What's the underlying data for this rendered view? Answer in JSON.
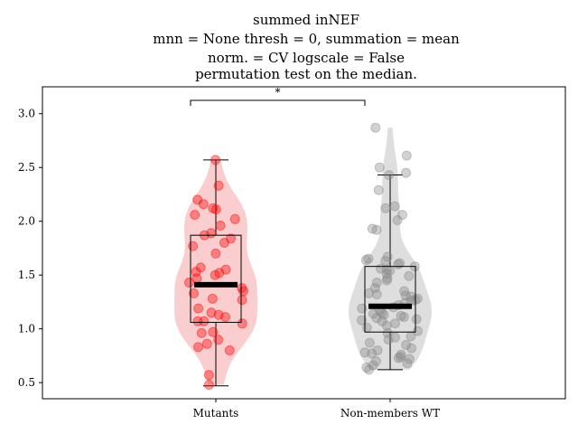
{
  "chart_data": {
    "type": "violin",
    "title_lines": [
      "summed inNEF",
      "mnn = None thresh = 0, summation = mean",
      "norm. = CV logscale = False",
      "permutation test on the median."
    ],
    "categories": [
      "Mutants",
      "Non-members WT"
    ],
    "ylim": [
      0.35,
      3.25
    ],
    "yticks": [
      0.5,
      1.0,
      1.5,
      2.0,
      2.5,
      3.0
    ],
    "ytick_labels": [
      "0.5",
      "1.0",
      "1.5",
      "2.0",
      "2.5",
      "3.0"
    ],
    "grid": false,
    "legend": "none",
    "significance": {
      "between": [
        "Mutants",
        "Non-members WT"
      ],
      "label": "*"
    },
    "series": [
      {
        "category": "Mutants",
        "color": "#ff0000",
        "violin_color": "#f8b4b4",
        "median": 1.41,
        "q1": 1.06,
        "q3": 1.87,
        "whisker_low": 0.47,
        "whisker_high": 2.57,
        "points": [
          2.57,
          2.33,
          2.2,
          2.16,
          2.12,
          2.11,
          2.06,
          2.02,
          1.96,
          1.89,
          1.87,
          1.84,
          1.8,
          1.77,
          1.7,
          1.57,
          1.55,
          1.53,
          1.52,
          1.5,
          1.47,
          1.43,
          1.38,
          1.35,
          1.33,
          1.28,
          1.27,
          1.19,
          1.15,
          1.13,
          1.11,
          1.07,
          1.07,
          1.05,
          0.97,
          0.96,
          0.9,
          0.86,
          0.83,
          0.8,
          0.57,
          0.48
        ]
      },
      {
        "category": "Non-members WT",
        "color": "#888888",
        "violin_color": "#cccccc",
        "median": 1.21,
        "q1": 0.97,
        "q3": 1.58,
        "whisker_low": 0.62,
        "whisker_high": 2.43,
        "points": [
          2.87,
          2.61,
          2.5,
          2.45,
          2.43,
          2.29,
          2.14,
          2.12,
          2.06,
          2.01,
          1.93,
          1.92,
          1.67,
          1.65,
          1.64,
          1.63,
          1.61,
          1.6,
          1.58,
          1.56,
          1.55,
          1.54,
          1.51,
          1.49,
          1.47,
          1.45,
          1.43,
          1.38,
          1.35,
          1.33,
          1.32,
          1.31,
          1.3,
          1.28,
          1.27,
          1.26,
          1.24,
          1.22,
          1.2,
          1.19,
          1.17,
          1.15,
          1.14,
          1.13,
          1.12,
          1.11,
          1.1,
          1.09,
          1.08,
          1.07,
          1.05,
          1.03,
          1.01,
          0.98,
          0.96,
          0.93,
          0.92,
          0.9,
          0.87,
          0.85,
          0.82,
          0.8,
          0.78,
          0.77,
          0.76,
          0.74,
          0.73,
          0.72,
          0.7,
          0.68,
          0.66,
          0.64,
          0.62
        ]
      }
    ]
  }
}
